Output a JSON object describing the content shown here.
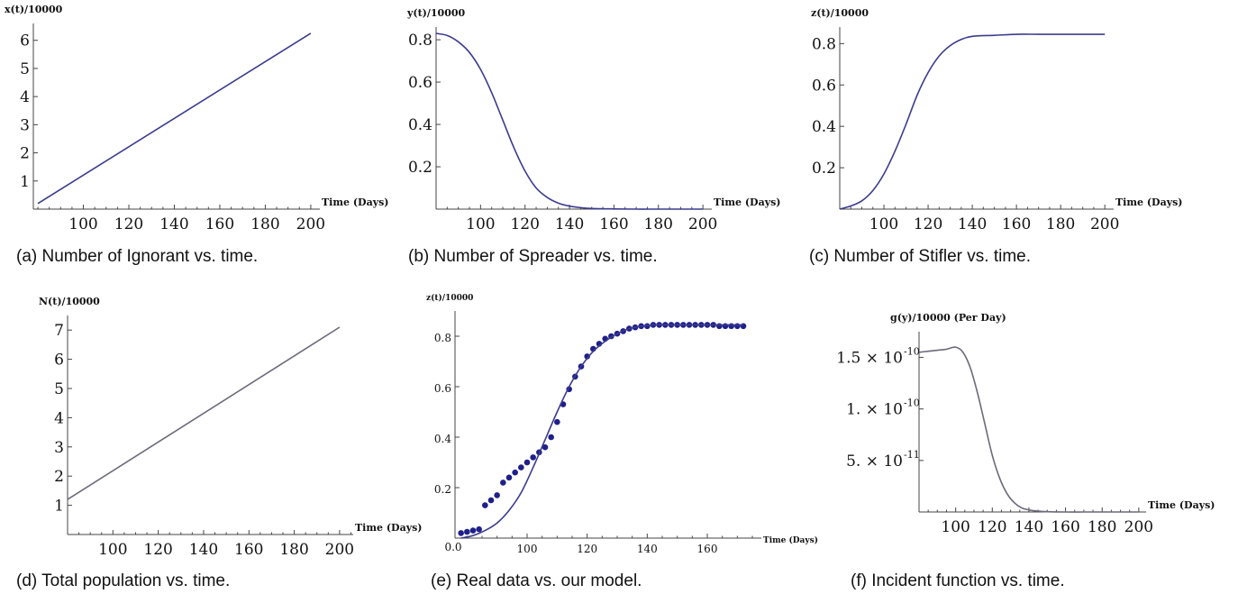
{
  "colors": {
    "curve": "#3b3b8e",
    "curve_gray": "#6a6a7a",
    "points": "#1f1f8a",
    "axis": "#444444"
  },
  "panels": [
    {
      "caption": "(a) Number of Ignorant vs. time."
    },
    {
      "caption": "(b) Number of Spreader vs. time."
    },
    {
      "caption": "(c) Number of Stifler vs. time."
    },
    {
      "caption": "(d) Total population vs. time."
    },
    {
      "caption": "(e) Real data vs. our model."
    },
    {
      "caption": "(f) Incident function vs. time."
    }
  ],
  "chart_data": [
    {
      "type": "line",
      "ylabel": "x(t)/10000",
      "xlabel": "Time (Days)",
      "xlim": [
        78,
        204
      ],
      "ylim": [
        0,
        6.6
      ],
      "xticks": [
        100,
        120,
        140,
        160,
        180,
        200
      ],
      "yticks": [
        1,
        2,
        3,
        4,
        5,
        6
      ],
      "series": [
        {
          "x": [
            80,
            200
          ],
          "y": [
            0.2,
            6.25
          ]
        }
      ]
    },
    {
      "type": "line",
      "ylabel": "y(t)/10000",
      "xlabel": "Time (Days)",
      "xlim": [
        80,
        204
      ],
      "ylim": [
        0,
        0.86
      ],
      "xticks": [
        100,
        120,
        140,
        160,
        180,
        200
      ],
      "yticks": [
        0.2,
        0.4,
        0.6,
        0.8
      ],
      "series": [
        {
          "x": [
            80,
            85,
            90,
            95,
            100,
            105,
            110,
            115,
            120,
            125,
            130,
            135,
            140,
            145,
            150,
            160,
            170,
            180,
            190,
            200
          ],
          "y": [
            0.83,
            0.82,
            0.79,
            0.74,
            0.66,
            0.55,
            0.42,
            0.29,
            0.18,
            0.1,
            0.055,
            0.028,
            0.014,
            0.007,
            0.003,
            0.001,
            0.0,
            0.0,
            0.0,
            0.0
          ]
        }
      ]
    },
    {
      "type": "line",
      "ylabel": "z(t)/10000",
      "xlabel": "Time (Days)",
      "xlim": [
        80,
        204
      ],
      "ylim": [
        0,
        0.88
      ],
      "xticks": [
        100,
        120,
        140,
        160,
        180,
        200
      ],
      "yticks": [
        0.2,
        0.4,
        0.6,
        0.8
      ],
      "series": [
        {
          "x": [
            80,
            85,
            90,
            95,
            100,
            105,
            110,
            115,
            120,
            125,
            130,
            135,
            140,
            150,
            160,
            170,
            180,
            190,
            200
          ],
          "y": [
            0.0,
            0.015,
            0.04,
            0.09,
            0.17,
            0.28,
            0.41,
            0.55,
            0.66,
            0.74,
            0.79,
            0.82,
            0.835,
            0.84,
            0.845,
            0.845,
            0.845,
            0.845,
            0.845
          ]
        }
      ]
    },
    {
      "type": "line",
      "ylabel": "N(t)/10000",
      "xlabel": "Time (Days)",
      "xlim": [
        80,
        206
      ],
      "ylim": [
        0,
        7.5
      ],
      "xticks": [
        100,
        120,
        140,
        160,
        180,
        200
      ],
      "yticks": [
        1,
        2,
        3,
        4,
        5,
        6,
        7
      ],
      "series": [
        {
          "x": [
            80,
            200
          ],
          "y": [
            1.2,
            7.1
          ]
        }
      ]
    },
    {
      "type": "scatter",
      "ylabel": "z(t)/10000",
      "xlabel": "Time (Days)",
      "xlim": [
        76,
        178
      ],
      "ylim": [
        0,
        0.9
      ],
      "xticks": [
        100,
        120,
        140,
        160
      ],
      "yticks": [
        0.2,
        0.4,
        0.6,
        0.8
      ],
      "xtick_extra": "0.0",
      "series": [
        {
          "kind": "points",
          "x": [
            78,
            80,
            82,
            84,
            86,
            88,
            90,
            92,
            94,
            96,
            98,
            100,
            102,
            104,
            106,
            108,
            110,
            112,
            114,
            116,
            118,
            120,
            122,
            124,
            126,
            128,
            130,
            132,
            134,
            136,
            138,
            140,
            142,
            144,
            146,
            148,
            150,
            152,
            154,
            156,
            158,
            160,
            162,
            164,
            166,
            168,
            170,
            172
          ],
          "y": [
            0.02,
            0.025,
            0.03,
            0.035,
            0.13,
            0.15,
            0.17,
            0.22,
            0.24,
            0.26,
            0.28,
            0.3,
            0.32,
            0.34,
            0.36,
            0.4,
            0.46,
            0.53,
            0.59,
            0.64,
            0.68,
            0.72,
            0.75,
            0.77,
            0.79,
            0.8,
            0.81,
            0.82,
            0.83,
            0.835,
            0.84,
            0.84,
            0.845,
            0.845,
            0.845,
            0.845,
            0.845,
            0.845,
            0.845,
            0.845,
            0.845,
            0.845,
            0.845,
            0.84,
            0.84,
            0.84,
            0.84,
            0.84
          ]
        },
        {
          "kind": "line",
          "x": [
            78,
            82,
            86,
            90,
            94,
            98,
            102,
            106,
            110,
            114,
            118,
            122,
            126,
            130,
            134,
            138,
            142,
            146,
            150,
            156,
            162,
            168,
            172
          ],
          "y": [
            0.0,
            0.01,
            0.03,
            0.06,
            0.11,
            0.18,
            0.28,
            0.39,
            0.5,
            0.6,
            0.68,
            0.74,
            0.78,
            0.81,
            0.83,
            0.84,
            0.845,
            0.845,
            0.845,
            0.845,
            0.845,
            0.845,
            0.845
          ]
        }
      ]
    },
    {
      "type": "line",
      "ylabel": "g(y)/10000 (Per Day)",
      "xlabel": "Time (Days)",
      "xlim": [
        80,
        204
      ],
      "ylim": [
        0,
        1.75e-10
      ],
      "xticks": [
        100,
        120,
        140,
        160,
        180,
        200
      ],
      "yticks": [
        5e-11,
        1e-10,
        1.5e-10
      ],
      "ytick_labels": [
        "5. × 10",
        "1. × 10",
        "1.5 × 10"
      ],
      "ytick_exps": [
        "-11",
        "-10",
        "-10"
      ],
      "series": [
        {
          "x": [
            80,
            85,
            90,
            95,
            100,
            104,
            108,
            112,
            116,
            120,
            124,
            128,
            132,
            136,
            140,
            145,
            150,
            160,
            170,
            180,
            190,
            200
          ],
          "y": [
            1.55e-10,
            1.56e-10,
            1.57e-10,
            1.58e-10,
            1.6e-10,
            1.55e-10,
            1.4e-10,
            1.15e-10,
            8.5e-11,
            5.5e-11,
            3.3e-11,
            1.8e-11,
            9e-12,
            4e-12,
            2e-12,
            8e-13,
            3e-13,
            0,
            0,
            0,
            0,
            0
          ]
        }
      ]
    }
  ]
}
